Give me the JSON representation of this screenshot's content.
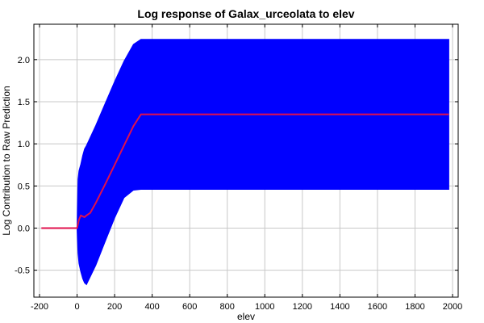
{
  "chart_data": {
    "type": "area",
    "title": "Log response of Galax_urceolata to elev",
    "xlabel": "elev",
    "ylabel": "Log Contribution to Raw Prediction",
    "xlim": [
      -230,
      2030
    ],
    "ylim": [
      -0.82,
      2.42
    ],
    "xticks": [
      -200,
      0,
      200,
      400,
      600,
      800,
      1000,
      1200,
      1400,
      1600,
      1800,
      2000
    ],
    "yticks": [
      -0.5,
      0.0,
      0.5,
      1.0,
      1.5,
      2.0
    ],
    "xtick_labels": [
      "-200",
      "0",
      "200",
      "400",
      "600",
      "800",
      "1000",
      "1200",
      "1400",
      "1600",
      "1800",
      "2000"
    ],
    "ytick_labels": [
      "-0.5",
      "0.0",
      "0.5",
      "1.0",
      "1.5",
      "2.0"
    ],
    "grid": true,
    "series": [
      {
        "role": "response",
        "color": "#e0114d",
        "x": [
          -190,
          0,
          10,
          20,
          30,
          40,
          50,
          70,
          100,
          150,
          200,
          250,
          300,
          340,
          370,
          1980
        ],
        "y": [
          0.0,
          0.0,
          0.1,
          0.15,
          0.14,
          0.13,
          0.15,
          0.18,
          0.3,
          0.52,
          0.75,
          0.98,
          1.21,
          1.35,
          1.35,
          1.35
        ]
      },
      {
        "role": "confidence band",
        "color": "#0000ff",
        "x": [
          0,
          5,
          10,
          20,
          30,
          40,
          50,
          100,
          150,
          200,
          250,
          300,
          340,
          360,
          1980
        ],
        "upper": [
          0.0,
          0.58,
          0.68,
          0.76,
          0.86,
          0.94,
          0.98,
          1.22,
          1.48,
          1.74,
          1.98,
          2.18,
          2.24,
          2.24,
          2.24
        ],
        "lower": [
          0.0,
          -0.3,
          -0.42,
          -0.52,
          -0.6,
          -0.65,
          -0.67,
          -0.44,
          -0.16,
          0.12,
          0.36,
          0.45,
          0.46,
          0.46,
          0.46
        ]
      }
    ]
  }
}
